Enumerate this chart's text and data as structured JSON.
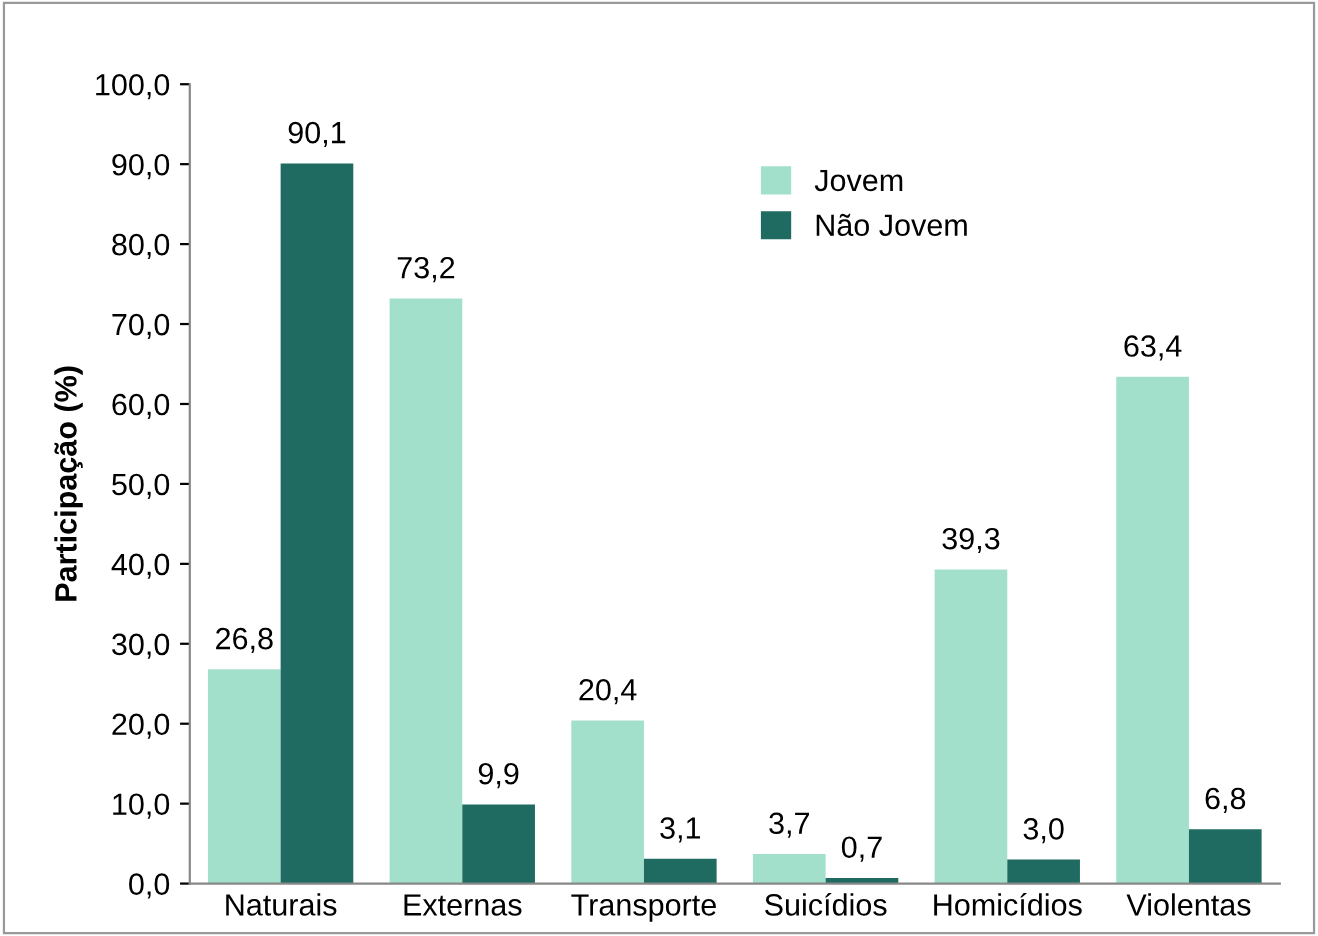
{
  "chart_data": {
    "type": "bar",
    "ylabel": "Participação (%)",
    "categories": [
      "Naturais",
      "Externas",
      "Transporte",
      "Suicídios",
      "Homicídios",
      "Violentas"
    ],
    "series": [
      {
        "name": "Jovem",
        "color": "#a3e0cc",
        "values": [
          26.8,
          73.2,
          20.4,
          3.7,
          39.3,
          63.4
        ],
        "value_labels": [
          "26,8",
          "73,2",
          "20,4",
          "3,7",
          "39,3",
          "63,4"
        ]
      },
      {
        "name": "Não Jovem",
        "color": "#1f6b62",
        "values": [
          90.1,
          9.9,
          3.1,
          0.7,
          3.0,
          6.8
        ],
        "value_labels": [
          "90,1",
          "9,9",
          "3,1",
          "0,7",
          "3,0",
          "6,8"
        ]
      }
    ],
    "ylim": [
      0,
      100
    ],
    "yticks": [
      {
        "value": 0,
        "label": "0,0"
      },
      {
        "value": 10,
        "label": "10,0"
      },
      {
        "value": 20,
        "label": "20,0"
      },
      {
        "value": 30,
        "label": "30,0"
      },
      {
        "value": 40,
        "label": "40,0"
      },
      {
        "value": 50,
        "label": "50,0"
      },
      {
        "value": 60,
        "label": "60,0"
      },
      {
        "value": 70,
        "label": "70,0"
      },
      {
        "value": 80,
        "label": "80,0"
      },
      {
        "value": 90,
        "label": "90,0"
      },
      {
        "value": 100,
        "label": "100,0"
      }
    ],
    "grid": false,
    "legend": "top center"
  }
}
